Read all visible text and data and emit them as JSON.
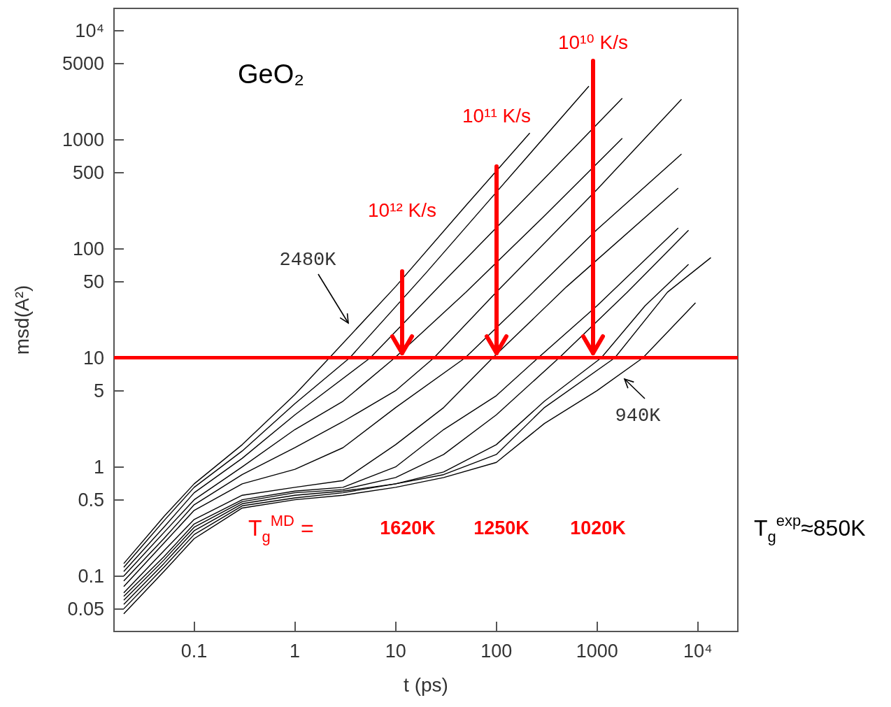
{
  "chart_data": {
    "type": "line",
    "title": "GeO₂",
    "xlabel": "t (ps)",
    "ylabel": "msd(A²)",
    "log": "xy",
    "marker": "none",
    "xlim": [
      0.016,
      25000
    ],
    "ylim": [
      0.031,
      16000
    ],
    "xticks": [
      0.1,
      1,
      10,
      100,
      1000,
      {
        "value": 10000,
        "label": "10⁴"
      }
    ],
    "yticks": [
      0.05,
      0.1,
      0.5,
      1,
      5,
      10,
      50,
      100,
      500,
      1000,
      5000,
      {
        "value": 10000,
        "label": "10⁴"
      }
    ],
    "series": [
      {
        "color": "#000000",
        "x": [
          0.02,
          0.05,
          0.1,
          0.3,
          1,
          2.2,
          10,
          50,
          215
        ],
        "values": [
          0.13,
          0.35,
          0.7,
          1.6,
          4.6,
          10,
          45,
          250,
          1150
        ]
      },
      {
        "color": "#000000",
        "x": [
          0.02,
          0.05,
          0.1,
          0.3,
          1,
          3.5,
          20,
          100,
          830
        ],
        "values": [
          0.12,
          0.32,
          0.65,
          1.4,
          3.8,
          10,
          60,
          330,
          3100
        ]
      },
      {
        "color": "#000000",
        "x": [
          0.02,
          0.05,
          0.1,
          0.3,
          1,
          5.6,
          30,
          200,
          1780
        ],
        "values": [
          0.11,
          0.28,
          0.58,
          1.2,
          3,
          10,
          50,
          300,
          2400
        ]
      },
      {
        "color": "#000000",
        "x": [
          0.02,
          0.05,
          0.1,
          0.3,
          1,
          3,
          9.8,
          50,
          300,
          1780
        ],
        "values": [
          0.1,
          0.25,
          0.5,
          1,
          2.2,
          4,
          10,
          40,
          200,
          1030
        ]
      },
      {
        "color": "#000000",
        "x": [
          0.02,
          0.05,
          0.1,
          0.3,
          1,
          3,
          10,
          24,
          100,
          1000,
          6900
        ],
        "values": [
          0.09,
          0.22,
          0.45,
          0.85,
          1.5,
          2.6,
          5,
          10,
          40,
          350,
          2350
        ]
      },
      {
        "color": "#000000",
        "x": [
          0.02,
          0.05,
          0.1,
          0.3,
          1,
          3,
          10,
          49,
          200,
          1000,
          6900
        ],
        "values": [
          0.08,
          0.2,
          0.4,
          0.7,
          0.95,
          1.5,
          3.5,
          10,
          35,
          150,
          740
        ]
      },
      {
        "color": "#000000",
        "x": [
          0.02,
          0.05,
          0.1,
          0.3,
          1,
          3,
          10,
          30,
          92,
          500,
          6400
        ],
        "values": [
          0.07,
          0.17,
          0.33,
          0.55,
          0.65,
          0.75,
          1.6,
          3.5,
          10,
          45,
          360
        ]
      },
      {
        "color": "#000000",
        "x": [
          0.02,
          0.05,
          0.1,
          0.3,
          1,
          3,
          10,
          30,
          100,
          260,
          1000,
          6400
        ],
        "values": [
          0.065,
          0.15,
          0.3,
          0.5,
          0.6,
          0.65,
          1,
          2.2,
          4.5,
          10,
          30,
          155
        ]
      },
      {
        "color": "#000000",
        "x": [
          0.02,
          0.05,
          0.1,
          0.3,
          1,
          3,
          10,
          30,
          100,
          420,
          2000,
          8100
        ],
        "values": [
          0.06,
          0.14,
          0.28,
          0.48,
          0.58,
          0.62,
          0.8,
          1.3,
          3,
          10,
          40,
          148
        ]
      },
      {
        "color": "#000000",
        "x": [
          0.02,
          0.05,
          0.1,
          0.3,
          1,
          3,
          10,
          30,
          100,
          300,
          1100,
          3000,
          8100
        ],
        "values": [
          0.055,
          0.13,
          0.26,
          0.46,
          0.55,
          0.6,
          0.7,
          0.9,
          1.6,
          4,
          10,
          30,
          72
        ]
      },
      {
        "color": "#000000",
        "x": [
          0.02,
          0.05,
          0.1,
          0.3,
          1,
          3,
          10,
          30,
          100,
          300,
          1500,
          5000,
          13500
        ],
        "values": [
          0.05,
          0.12,
          0.24,
          0.44,
          0.52,
          0.58,
          0.7,
          0.85,
          1.3,
          3.5,
          10,
          40,
          83
        ]
      },
      {
        "color": "#000000",
        "x": [
          0.02,
          0.05,
          0.1,
          0.3,
          1,
          3,
          10,
          30,
          100,
          300,
          1000,
          2850,
          9500
        ],
        "values": [
          0.045,
          0.11,
          0.22,
          0.42,
          0.5,
          0.55,
          0.65,
          0.8,
          1.1,
          2.5,
          5,
          10,
          32
        ]
      }
    ],
    "ref_lines": [
      {
        "axis": "y",
        "value": 10,
        "color": "#ff0000"
      }
    ],
    "annotations": [
      "10¹² K/s",
      "10¹¹ K/s",
      "10¹⁰ K/s",
      "1620K",
      "1250K",
      "1020K",
      "2480K",
      "940K",
      "T$_{g}$$^{MD}$ =",
      "T$_{g}$$^{exp}$≈850K"
    ]
  }
}
